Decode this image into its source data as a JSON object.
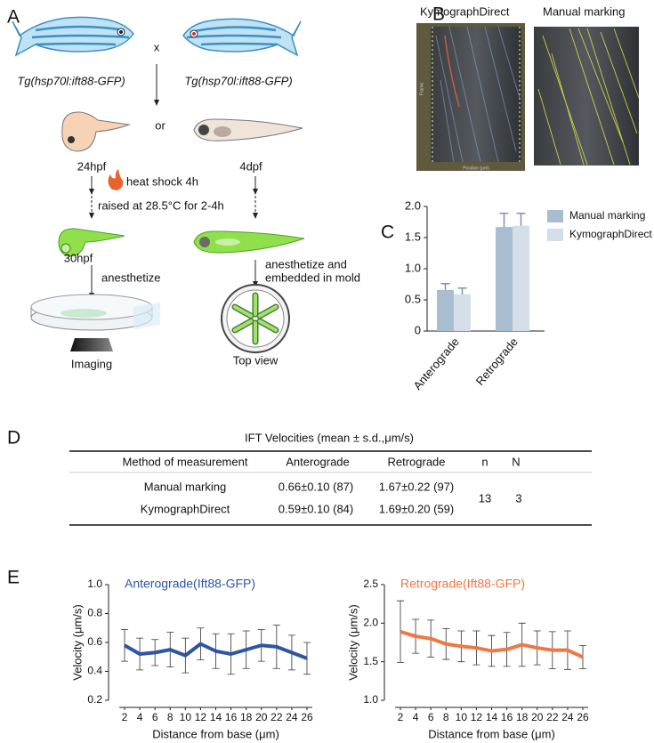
{
  "panel_labels": [
    "A",
    "B",
    "C",
    "D",
    "E"
  ],
  "schematic": {
    "parent_left": "Tg(hsp70l:ift88-GFP)",
    "cross": "x",
    "parent_right": "Tg(hsp70l:ift88-GFP)",
    "or": "or",
    "stage_left": "24hpf",
    "stage_right": "4dpf",
    "heat_shock": "heat shock 4h",
    "raised": "raised at 28.5°C for 2-4h",
    "stage_30": "30hpf",
    "anesthetize": "anesthetize",
    "anesthetize_mold": [
      "anesthetize and",
      "embedded in mold"
    ],
    "imaging": "Imaging",
    "top_view": "Top view"
  },
  "kymographs": {
    "left_title": "KymographDirect",
    "right_title": "Manual marking",
    "x_label": "Position (μm)",
    "y_label": "Frame"
  },
  "table": {
    "title": "IFT Velocities (mean ± s.d.,μm/s)",
    "header": [
      "Method of measurement",
      "Anterograde",
      "Retrograde",
      "n",
      "N"
    ],
    "rows": [
      [
        "Manual marking",
        "0.66±0.10 (87)",
        "1.67±0.22 (97)"
      ],
      [
        "KymographDirect",
        "0.59±0.10 (84)",
        "1.69±0.20 (59)"
      ]
    ],
    "n": "13",
    "N": "3"
  },
  "chart_data": [
    {
      "type": "bar",
      "categories": [
        "Anterograde",
        "Retrograde"
      ],
      "series": [
        {
          "name": "Manual marking",
          "color": "#a9bdd1",
          "values": [
            0.66,
            1.67
          ],
          "errors": [
            0.1,
            0.22
          ]
        },
        {
          "name": "KymographDirect",
          "color": "#d3dee9",
          "values": [
            0.59,
            1.69
          ],
          "errors": [
            0.1,
            0.2
          ]
        }
      ],
      "ylim": [
        0,
        2.0
      ],
      "yticks": [
        0,
        0.5,
        {
          "value": 1.0,
          "label": "1.0"
        },
        1.5,
        {
          "value": 2.0,
          "label": "2.0"
        }
      ],
      "legend": "right"
    },
    {
      "type": "line",
      "title": "Anterograde(Ift88-GFP)",
      "xlabel": "Distance from base (μm)",
      "ylabel": "Velocity (μm/s)",
      "x": [
        2,
        4,
        6,
        8,
        10,
        12,
        14,
        16,
        18,
        20,
        22,
        24,
        26
      ],
      "series": [
        {
          "color": "#2e55a0",
          "values": [
            0.58,
            0.52,
            0.53,
            0.55,
            0.51,
            0.59,
            0.54,
            0.52,
            0.55,
            0.58,
            0.57,
            0.53,
            0.49
          ],
          "errors": [
            0.11,
            0.11,
            0.09,
            0.12,
            0.12,
            0.11,
            0.12,
            0.14,
            0.13,
            0.11,
            0.15,
            0.12,
            0.11
          ]
        }
      ],
      "xlim": [
        2,
        26
      ],
      "xticks": [
        2,
        4,
        6,
        8,
        10,
        12,
        14,
        16,
        18,
        20,
        22,
        24,
        26
      ],
      "ylim": [
        0.2,
        1.0
      ],
      "yticks": [
        0.2,
        0.4,
        0.6,
        0.8,
        {
          "value": 1.0,
          "label": "1.0"
        }
      ]
    },
    {
      "type": "line",
      "title": "Retrograde(Ift88-GFP)",
      "xlabel": "Distance from base (μm)",
      "ylabel": "Velocity (μm/s)",
      "x": [
        2,
        4,
        6,
        8,
        10,
        12,
        14,
        16,
        18,
        20,
        22,
        24,
        26
      ],
      "series": [
        {
          "color": "#ee7744",
          "values": [
            1.89,
            1.83,
            1.8,
            1.73,
            1.7,
            1.68,
            1.64,
            1.66,
            1.72,
            1.68,
            1.65,
            1.65,
            1.56
          ],
          "errors": [
            0.4,
            0.22,
            0.24,
            0.2,
            0.2,
            0.22,
            0.2,
            0.22,
            0.28,
            0.22,
            0.24,
            0.25,
            0.15
          ]
        }
      ],
      "xlim": [
        2,
        26
      ],
      "xticks": [
        2,
        4,
        6,
        8,
        10,
        12,
        14,
        16,
        18,
        20,
        22,
        24,
        26
      ],
      "ylim": [
        1.0,
        2.5
      ],
      "yticks": [
        {
          "value": 1.0,
          "label": "1.0"
        },
        1.5,
        {
          "value": 2.0,
          "label": "2.0"
        },
        2.5
      ]
    }
  ]
}
